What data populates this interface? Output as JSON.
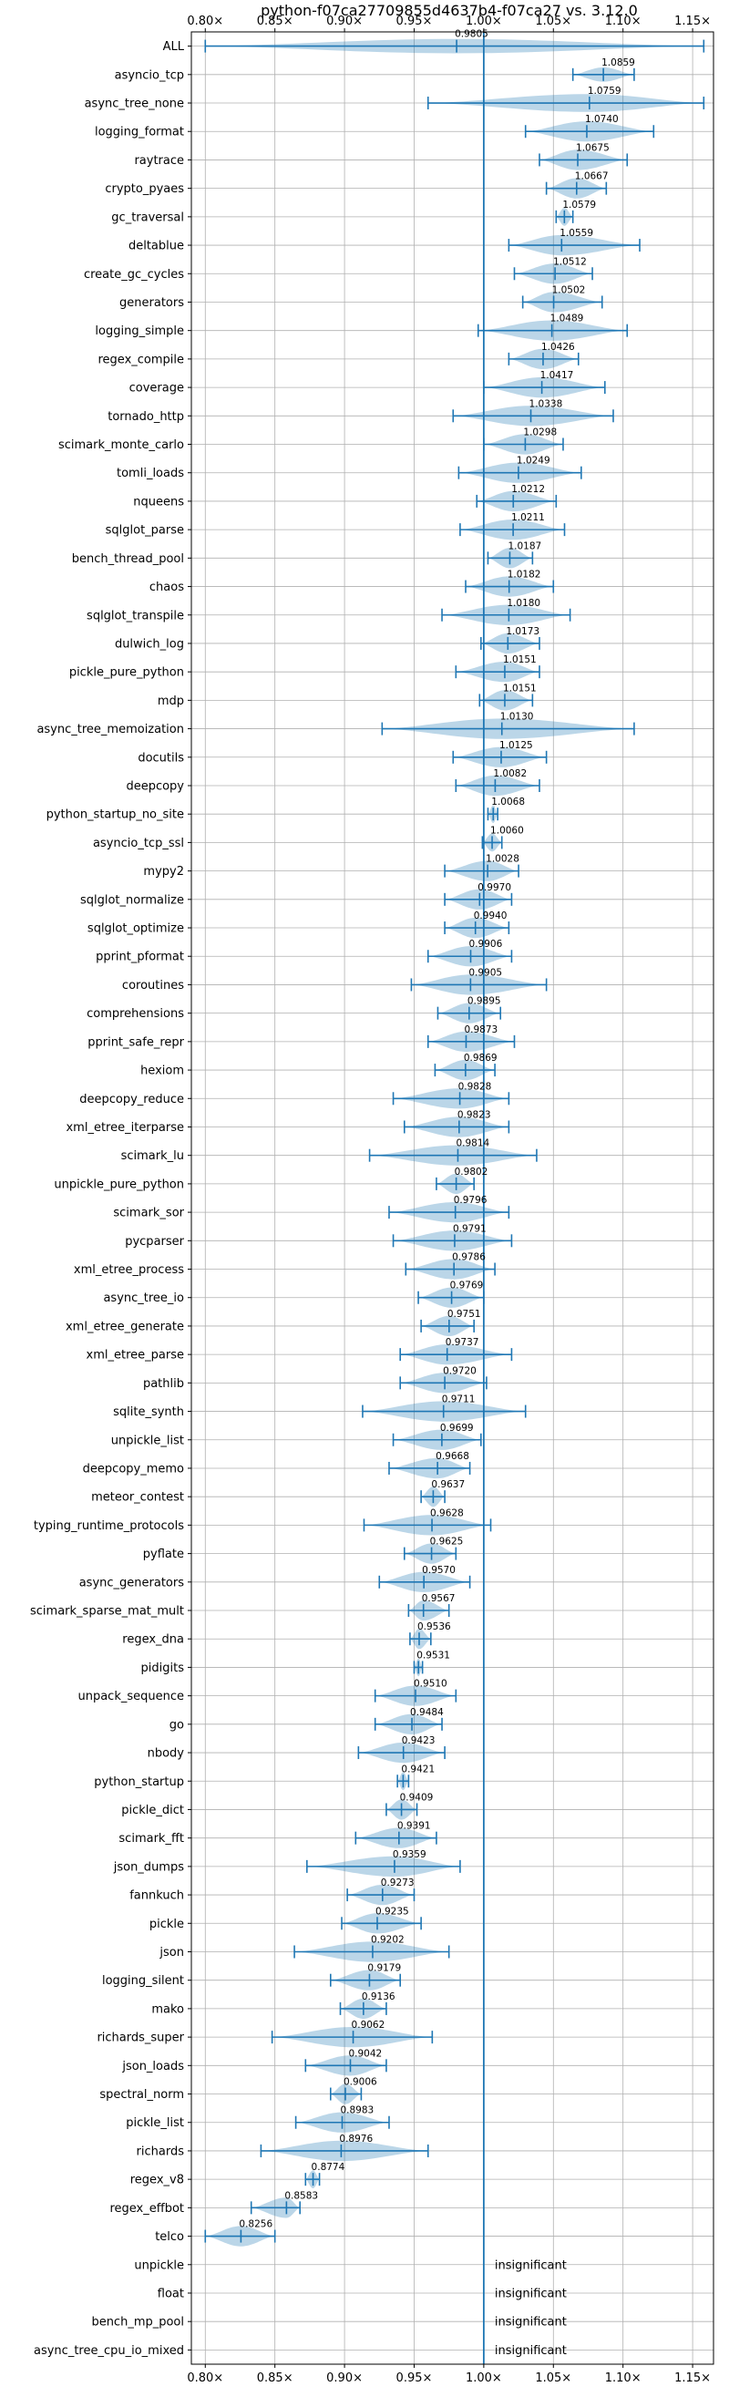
{
  "chart_data": {
    "type": "violin",
    "title": "python-f07ca27709855d4637b4-f07ca27 vs. 3.12.0",
    "xlim": [
      0.79,
      1.165
    ],
    "xticks": [
      0.8,
      0.85,
      0.9,
      0.95,
      1.0,
      1.05,
      1.1,
      1.15
    ],
    "xtick_labels": [
      "0.80×",
      "0.85×",
      "0.90×",
      "0.95×",
      "1.00×",
      "1.05×",
      "1.10×",
      "1.15×"
    ],
    "grid": true,
    "reference_line": 1.0,
    "rows": [
      {
        "name": "ALL",
        "label": "0.9805",
        "value": 0.9805,
        "min": 0.8,
        "max": 1.158,
        "width": 0.6
      },
      {
        "name": "asyncio_tcp",
        "label": "1.0859",
        "value": 1.0859,
        "min": 1.064,
        "max": 1.108,
        "width": 0.6
      },
      {
        "name": "async_tree_none",
        "label": "1.0759",
        "value": 1.0759,
        "min": 0.96,
        "max": 1.158,
        "width": 0.75
      },
      {
        "name": "logging_format",
        "label": "1.0740",
        "value": 1.074,
        "min": 1.03,
        "max": 1.122,
        "width": 0.85
      },
      {
        "name": "raytrace",
        "label": "1.0675",
        "value": 1.0675,
        "min": 1.04,
        "max": 1.103,
        "width": 0.85
      },
      {
        "name": "crypto_pyaes",
        "label": "1.0667",
        "value": 1.0667,
        "min": 1.045,
        "max": 1.088,
        "width": 0.85
      },
      {
        "name": "gc_traversal",
        "label": "1.0579",
        "value": 1.0579,
        "min": 1.052,
        "max": 1.064,
        "width": 0.75
      },
      {
        "name": "deltablue",
        "label": "1.0559",
        "value": 1.0559,
        "min": 1.018,
        "max": 1.112,
        "width": 0.85
      },
      {
        "name": "create_gc_cycles",
        "label": "1.0512",
        "value": 1.0512,
        "min": 1.022,
        "max": 1.078,
        "width": 0.85
      },
      {
        "name": "generators",
        "label": "1.0502",
        "value": 1.0502,
        "min": 1.028,
        "max": 1.085,
        "width": 0.85
      },
      {
        "name": "logging_simple",
        "label": "1.0489",
        "value": 1.0489,
        "min": 0.996,
        "max": 1.103,
        "width": 0.85
      },
      {
        "name": "regex_compile",
        "label": "1.0426",
        "value": 1.0426,
        "min": 1.018,
        "max": 1.068,
        "width": 0.85
      },
      {
        "name": "coverage",
        "label": "1.0417",
        "value": 1.0417,
        "min": 1.0,
        "max": 1.087,
        "width": 0.85
      },
      {
        "name": "tornado_http",
        "label": "1.0338",
        "value": 1.0338,
        "min": 0.978,
        "max": 1.093,
        "width": 0.85
      },
      {
        "name": "scimark_monte_carlo",
        "label": "1.0298",
        "value": 1.0298,
        "min": 1.0,
        "max": 1.057,
        "width": 0.85
      },
      {
        "name": "tomli_loads",
        "label": "1.0249",
        "value": 1.0249,
        "min": 0.982,
        "max": 1.07,
        "width": 0.85
      },
      {
        "name": "nqueens",
        "label": "1.0212",
        "value": 1.0212,
        "min": 0.995,
        "max": 1.052,
        "width": 0.85
      },
      {
        "name": "sqlglot_parse",
        "label": "1.0211",
        "value": 1.0211,
        "min": 0.983,
        "max": 1.058,
        "width": 0.85
      },
      {
        "name": "bench_thread_pool",
        "label": "1.0187",
        "value": 1.0187,
        "min": 1.003,
        "max": 1.035,
        "width": 0.85
      },
      {
        "name": "chaos",
        "label": "1.0182",
        "value": 1.0182,
        "min": 0.987,
        "max": 1.05,
        "width": 0.85
      },
      {
        "name": "sqlglot_transpile",
        "label": "1.0180",
        "value": 1.018,
        "min": 0.97,
        "max": 1.062,
        "width": 0.85
      },
      {
        "name": "dulwich_log",
        "label": "1.0173",
        "value": 1.0173,
        "min": 0.998,
        "max": 1.04,
        "width": 0.85
      },
      {
        "name": "pickle_pure_python",
        "label": "1.0151",
        "value": 1.0151,
        "min": 0.98,
        "max": 1.04,
        "width": 0.85
      },
      {
        "name": "mdp",
        "label": "1.0151",
        "value": 1.0151,
        "min": 0.997,
        "max": 1.035,
        "width": 0.85
      },
      {
        "name": "async_tree_memoization",
        "label": "1.0130",
        "value": 1.013,
        "min": 0.927,
        "max": 1.108,
        "width": 0.85
      },
      {
        "name": "docutils",
        "label": "1.0125",
        "value": 1.0125,
        "min": 0.978,
        "max": 1.045,
        "width": 0.85
      },
      {
        "name": "deepcopy",
        "label": "1.0082",
        "value": 1.0082,
        "min": 0.98,
        "max": 1.04,
        "width": 0.85
      },
      {
        "name": "python_startup_no_site",
        "label": "1.0068",
        "value": 1.0068,
        "min": 1.003,
        "max": 1.01,
        "width": 0.75
      },
      {
        "name": "asyncio_tcp_ssl",
        "label": "1.0060",
        "value": 1.006,
        "min": 0.999,
        "max": 1.013,
        "width": 0.75
      },
      {
        "name": "mypy2",
        "label": "1.0028",
        "value": 1.0028,
        "min": 0.972,
        "max": 1.025,
        "width": 0.85
      },
      {
        "name": "sqlglot_normalize",
        "label": "0.9970",
        "value": 0.997,
        "min": 0.972,
        "max": 1.02,
        "width": 0.85
      },
      {
        "name": "sqlglot_optimize",
        "label": "0.9940",
        "value": 0.994,
        "min": 0.972,
        "max": 1.018,
        "width": 0.85
      },
      {
        "name": "pprint_pformat",
        "label": "0.9906",
        "value": 0.9906,
        "min": 0.96,
        "max": 1.02,
        "width": 0.85
      },
      {
        "name": "coroutines",
        "label": "0.9905",
        "value": 0.9905,
        "min": 0.948,
        "max": 1.045,
        "width": 0.85
      },
      {
        "name": "comprehensions",
        "label": "0.9895",
        "value": 0.9895,
        "min": 0.967,
        "max": 1.012,
        "width": 0.85
      },
      {
        "name": "pprint_safe_repr",
        "label": "0.9873",
        "value": 0.9873,
        "min": 0.96,
        "max": 1.022,
        "width": 0.85
      },
      {
        "name": "hexiom",
        "label": "0.9869",
        "value": 0.9869,
        "min": 0.965,
        "max": 1.008,
        "width": 0.85
      },
      {
        "name": "deepcopy_reduce",
        "label": "0.9828",
        "value": 0.9828,
        "min": 0.935,
        "max": 1.018,
        "width": 0.85
      },
      {
        "name": "xml_etree_iterparse",
        "label": "0.9823",
        "value": 0.9823,
        "min": 0.943,
        "max": 1.018,
        "width": 0.85
      },
      {
        "name": "scimark_lu",
        "label": "0.9814",
        "value": 0.9814,
        "min": 0.918,
        "max": 1.038,
        "width": 0.85
      },
      {
        "name": "unpickle_pure_python",
        "label": "0.9802",
        "value": 0.9802,
        "min": 0.966,
        "max": 0.993,
        "width": 0.85
      },
      {
        "name": "scimark_sor",
        "label": "0.9796",
        "value": 0.9796,
        "min": 0.932,
        "max": 1.018,
        "width": 0.85
      },
      {
        "name": "pycparser",
        "label": "0.9791",
        "value": 0.9791,
        "min": 0.935,
        "max": 1.02,
        "width": 0.85
      },
      {
        "name": "xml_etree_process",
        "label": "0.9786",
        "value": 0.9786,
        "min": 0.944,
        "max": 1.008,
        "width": 0.85
      },
      {
        "name": "async_tree_io",
        "label": "0.9769",
        "value": 0.9769,
        "min": 0.953,
        "max": 1.0,
        "width": 0.85
      },
      {
        "name": "xml_etree_generate",
        "label": "0.9751",
        "value": 0.9751,
        "min": 0.955,
        "max": 0.993,
        "width": 0.85
      },
      {
        "name": "xml_etree_parse",
        "label": "0.9737",
        "value": 0.9737,
        "min": 0.94,
        "max": 1.02,
        "width": 0.85
      },
      {
        "name": "pathlib",
        "label": "0.9720",
        "value": 0.972,
        "min": 0.94,
        "max": 1.002,
        "width": 0.85
      },
      {
        "name": "sqlite_synth",
        "label": "0.9711",
        "value": 0.9711,
        "min": 0.913,
        "max": 1.03,
        "width": 0.85
      },
      {
        "name": "unpickle_list",
        "label": "0.9699",
        "value": 0.9699,
        "min": 0.935,
        "max": 0.998,
        "width": 0.85
      },
      {
        "name": "deepcopy_memo",
        "label": "0.9668",
        "value": 0.9668,
        "min": 0.932,
        "max": 0.99,
        "width": 0.85
      },
      {
        "name": "meteor_contest",
        "label": "0.9637",
        "value": 0.9637,
        "min": 0.955,
        "max": 0.972,
        "width": 0.85
      },
      {
        "name": "typing_runtime_protocols",
        "label": "0.9628",
        "value": 0.9628,
        "min": 0.914,
        "max": 1.005,
        "width": 0.85
      },
      {
        "name": "pyflate",
        "label": "0.9625",
        "value": 0.9625,
        "min": 0.943,
        "max": 0.98,
        "width": 0.85
      },
      {
        "name": "async_generators",
        "label": "0.9570",
        "value": 0.957,
        "min": 0.925,
        "max": 0.99,
        "width": 0.85
      },
      {
        "name": "scimark_sparse_mat_mult",
        "label": "0.9567",
        "value": 0.9567,
        "min": 0.946,
        "max": 0.975,
        "width": 0.85
      },
      {
        "name": "regex_dna",
        "label": "0.9536",
        "value": 0.9536,
        "min": 0.947,
        "max": 0.962,
        "width": 0.85
      },
      {
        "name": "pidigits",
        "label": "0.9531",
        "value": 0.9531,
        "min": 0.95,
        "max": 0.956,
        "width": 0.75
      },
      {
        "name": "unpack_sequence",
        "label": "0.9510",
        "value": 0.951,
        "min": 0.922,
        "max": 0.98,
        "width": 0.85
      },
      {
        "name": "go",
        "label": "0.9484",
        "value": 0.9484,
        "min": 0.922,
        "max": 0.97,
        "width": 0.85
      },
      {
        "name": "nbody",
        "label": "0.9423",
        "value": 0.9423,
        "min": 0.91,
        "max": 0.972,
        "width": 0.85
      },
      {
        "name": "python_startup",
        "label": "0.9421",
        "value": 0.9421,
        "min": 0.938,
        "max": 0.946,
        "width": 0.75
      },
      {
        "name": "pickle_dict",
        "label": "0.9409",
        "value": 0.9409,
        "min": 0.93,
        "max": 0.952,
        "width": 0.85
      },
      {
        "name": "scimark_fft",
        "label": "0.9391",
        "value": 0.9391,
        "min": 0.908,
        "max": 0.966,
        "width": 0.85
      },
      {
        "name": "json_dumps",
        "label": "0.9359",
        "value": 0.9359,
        "min": 0.873,
        "max": 0.983,
        "width": 0.85
      },
      {
        "name": "fannkuch",
        "label": "0.9273",
        "value": 0.9273,
        "min": 0.902,
        "max": 0.95,
        "width": 0.85
      },
      {
        "name": "pickle",
        "label": "0.9235",
        "value": 0.9235,
        "min": 0.898,
        "max": 0.955,
        "width": 0.85
      },
      {
        "name": "json",
        "label": "0.9202",
        "value": 0.9202,
        "min": 0.864,
        "max": 0.975,
        "width": 0.85
      },
      {
        "name": "logging_silent",
        "label": "0.9179",
        "value": 0.9179,
        "min": 0.89,
        "max": 0.94,
        "width": 0.85
      },
      {
        "name": "mako",
        "label": "0.9136",
        "value": 0.9136,
        "min": 0.897,
        "max": 0.93,
        "width": 0.85
      },
      {
        "name": "richards_super",
        "label": "0.9062",
        "value": 0.9062,
        "min": 0.848,
        "max": 0.963,
        "width": 0.85
      },
      {
        "name": "json_loads",
        "label": "0.9042",
        "value": 0.9042,
        "min": 0.872,
        "max": 0.93,
        "width": 0.85
      },
      {
        "name": "spectral_norm",
        "label": "0.9006",
        "value": 0.9006,
        "min": 0.89,
        "max": 0.912,
        "width": 0.85
      },
      {
        "name": "pickle_list",
        "label": "0.8983",
        "value": 0.8983,
        "min": 0.865,
        "max": 0.932,
        "width": 0.85
      },
      {
        "name": "richards",
        "label": "0.8976",
        "value": 0.8976,
        "min": 0.84,
        "max": 0.96,
        "width": 0.85
      },
      {
        "name": "regex_v8",
        "label": "0.8774",
        "value": 0.8774,
        "min": 0.872,
        "max": 0.882,
        "width": 0.75
      },
      {
        "name": "regex_effbot",
        "label": "0.8583",
        "value": 0.8583,
        "min": 0.833,
        "max": 0.868,
        "width": 0.85
      },
      {
        "name": "telco",
        "label": "0.8256",
        "value": 0.8256,
        "min": 0.8,
        "max": 0.85,
        "width": 0.85
      },
      {
        "name": "unpickle",
        "label": "insignificant",
        "value": null
      },
      {
        "name": "float",
        "label": "insignificant",
        "value": null
      },
      {
        "name": "bench_mp_pool",
        "label": "insignificant",
        "value": null
      },
      {
        "name": "async_tree_cpu_io_mixed",
        "label": "insignificant",
        "value": null
      }
    ]
  }
}
